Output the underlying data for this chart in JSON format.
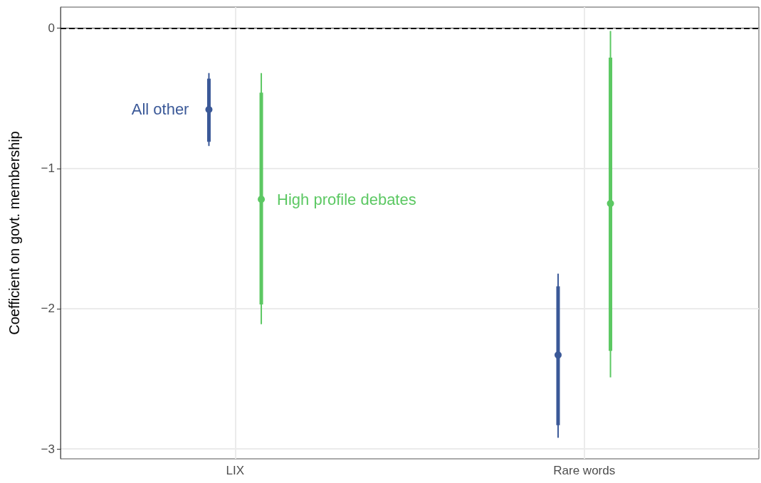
{
  "chart_data": {
    "type": "scatter",
    "ylabel": "Coefficient on govt. membership",
    "categories": [
      "LIX",
      "Rare words"
    ],
    "series": [
      {
        "type": "bar",
        "color": "#3b5998",
        "base": [
          -0.81,
          -2.83
        ],
        "values": [
          0.45,
          0.99
        ]
      },
      {
        "type": "bar",
        "color": "#5cc863",
        "base": [
          -1.97,
          -2.3
        ],
        "values": [
          1.51,
          2.09
        ]
      },
      {
        "name": "All other",
        "color": "#3b5998",
        "values": [
          -0.58,
          -2.33
        ],
        "errors": [
          [
            -0.84,
            -0.32
          ],
          [
            -2.92,
            -1.75
          ]
        ]
      },
      {
        "name": "High profile debates",
        "color": "#5cc863",
        "values": [
          -1.22,
          -1.25
        ],
        "errors": [
          [
            -2.11,
            -0.32
          ],
          [
            -2.49,
            -0.02
          ]
        ]
      }
    ],
    "ylim": [
      -3.07,
      0.15
    ],
    "yticks": [
      {
        "value": 0,
        "label": "0"
      },
      {
        "value": -1,
        "label": "−1"
      },
      {
        "value": -2,
        "label": "−2"
      },
      {
        "value": -3,
        "label": "−3"
      }
    ],
    "ref_lines": [
      {
        "axis": "y",
        "value": 0,
        "color": "#000000",
        "line_style": "dashed"
      }
    ],
    "grid": true,
    "marker": "circle"
  }
}
